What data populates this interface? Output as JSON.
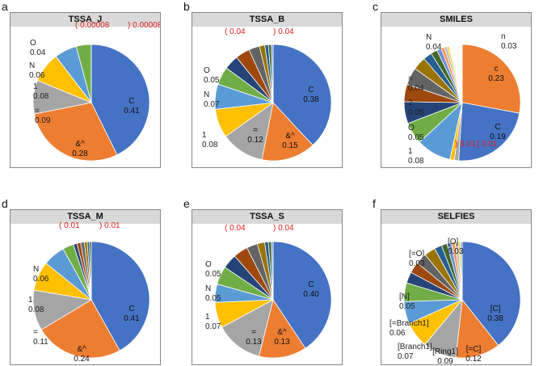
{
  "chart_data": [
    {
      "panel": "a",
      "title": "TSSA_J",
      "type": "pie",
      "slices": [
        {
          "label": "C",
          "value": 0.41,
          "color": "#4472c4",
          "text": "0.41"
        },
        {
          "label": "&^",
          "value": 0.28,
          "color": "#ed7d31",
          "text": "0.28"
        },
        {
          "label": "=",
          "value": 0.09,
          "color": "#a5a5a5",
          "text": "0.09"
        },
        {
          "label": "1",
          "value": 0.08,
          "color": "#ffc000",
          "text": "0.08"
        },
        {
          "label": "N",
          "value": 0.06,
          "color": "#5b9bd5",
          "text": "0.06"
        },
        {
          "label": "O",
          "value": 0.04,
          "color": "#70ad47",
          "text": "0.04"
        },
        {
          "label": "(",
          "value": 8e-05,
          "color": "#264478",
          "text": "0.00008"
        },
        {
          "label": ")",
          "value": 8e-05,
          "color": "#9e480e",
          "text": "0.00008"
        }
      ]
    },
    {
      "panel": "b",
      "title": "TSSA_B",
      "type": "pie",
      "slices": [
        {
          "label": "C",
          "value": 0.38,
          "color": "#4472c4",
          "text": "0.38"
        },
        {
          "label": "&^",
          "value": 0.15,
          "color": "#ed7d31",
          "text": "0.15"
        },
        {
          "label": "=",
          "value": 0.12,
          "color": "#a5a5a5",
          "text": "0.12"
        },
        {
          "label": "1",
          "value": 0.08,
          "color": "#ffc000",
          "text": "0.08"
        },
        {
          "label": "N",
          "value": 0.07,
          "color": "#5b9bd5",
          "text": "0.07"
        },
        {
          "label": "O",
          "value": 0.05,
          "color": "#70ad47",
          "text": "0.05"
        },
        {
          "label": "(",
          "value": 0.04,
          "color": "#264478",
          "text": "0.04"
        },
        {
          "label": ")",
          "value": 0.04,
          "color": "#9e480e",
          "text": "0.04"
        },
        {
          "label": "",
          "value": 0.03,
          "color": "#636363"
        },
        {
          "label": "",
          "value": 0.015,
          "color": "#997300"
        },
        {
          "label": "",
          "value": 0.01,
          "color": "#255e91"
        },
        {
          "label": "",
          "value": 0.008,
          "color": "#43682b"
        },
        {
          "label": "",
          "value": 0.005,
          "color": "#698ed0"
        }
      ]
    },
    {
      "panel": "c",
      "title": "SMILES",
      "type": "pie",
      "slices": [
        {
          "label": "c",
          "value": 0.23,
          "color": "#ed7d31",
          "text": "0.23"
        },
        {
          "label": "C",
          "value": 0.19,
          "color": "#4472c4",
          "text": "0.19"
        },
        {
          "label": "(",
          "value": 0.01,
          "color": "#a5a5a5",
          "text": "0.01"
        },
        {
          "label": ")",
          "value": 0.01,
          "color": "#ffc000",
          "text": "0.01"
        },
        {
          "label": "1",
          "value": 0.08,
          "color": "#5b9bd5",
          "text": "0.08"
        },
        {
          "label": "O",
          "value": 0.05,
          "color": "#70ad47",
          "text": "0.05"
        },
        {
          "label": "2",
          "value": 0.05,
          "color": "#264478",
          "text": "0.05"
        },
        {
          "label": "=",
          "value": 0.04,
          "color": "#9e480e",
          "text": "0.04"
        },
        {
          "label": "N",
          "value": 0.04,
          "color": "#636363",
          "text": "0.04"
        },
        {
          "label": "",
          "value": 0.03,
          "color": "#997300"
        },
        {
          "label": "",
          "value": 0.02,
          "color": "#255e91"
        },
        {
          "label": "",
          "value": 0.015,
          "color": "#43682b"
        },
        {
          "label": "",
          "value": 0.01,
          "color": "#698ed0"
        },
        {
          "label": "",
          "value": 0.008,
          "color": "#f1975a"
        },
        {
          "label": "",
          "value": 0.006,
          "color": "#b7b7b7"
        },
        {
          "label": "",
          "value": 0.005,
          "color": "#ffcd33"
        },
        {
          "label": "n",
          "value": 0.03,
          "color": "#ffffff",
          "text": "0.03"
        }
      ]
    },
    {
      "panel": "d",
      "title": "TSSA_M",
      "type": "pie",
      "slices": [
        {
          "label": "C",
          "value": 0.41,
          "color": "#4472c4",
          "text": "0.41"
        },
        {
          "label": "&^",
          "value": 0.24,
          "color": "#ed7d31",
          "text": "0.24"
        },
        {
          "label": "=",
          "value": 0.11,
          "color": "#a5a5a5",
          "text": "0.11"
        },
        {
          "label": "1",
          "value": 0.08,
          "color": "#ffc000",
          "text": "0.08"
        },
        {
          "label": "N",
          "value": 0.06,
          "color": "#5b9bd5",
          "text": "0.06"
        },
        {
          "label": "",
          "value": 0.03,
          "color": "#70ad47"
        },
        {
          "label": "(",
          "value": 0.01,
          "color": "#264478",
          "text": "0.01"
        },
        {
          "label": ")",
          "value": 0.01,
          "color": "#9e480e",
          "text": "0.01"
        },
        {
          "label": "",
          "value": 0.01,
          "color": "#636363"
        },
        {
          "label": "",
          "value": 0.008,
          "color": "#997300"
        },
        {
          "label": "",
          "value": 0.006,
          "color": "#255e91"
        },
        {
          "label": "",
          "value": 0.005,
          "color": "#43682b"
        }
      ]
    },
    {
      "panel": "e",
      "title": "TSSA_S",
      "type": "pie",
      "slices": [
        {
          "label": "C",
          "value": 0.4,
          "color": "#4472c4",
          "text": "0.40"
        },
        {
          "label": "&^",
          "value": 0.13,
          "color": "#ed7d31",
          "text": "0.13"
        },
        {
          "label": "=",
          "value": 0.13,
          "color": "#a5a5a5",
          "text": "0.13"
        },
        {
          "label": "1",
          "value": 0.07,
          "color": "#ffc000",
          "text": "0.07"
        },
        {
          "label": "N",
          "value": 0.05,
          "color": "#5b9bd5",
          "text": "0.05"
        },
        {
          "label": "O",
          "value": 0.05,
          "color": "#70ad47",
          "text": "0.05"
        },
        {
          "label": "(",
          "value": 0.04,
          "color": "#264478",
          "text": "0.04"
        },
        {
          "label": ")",
          "value": 0.04,
          "color": "#9e480e",
          "text": "0.04"
        },
        {
          "label": "",
          "value": 0.03,
          "color": "#636363"
        },
        {
          "label": "",
          "value": 0.02,
          "color": "#997300"
        },
        {
          "label": "",
          "value": 0.01,
          "color": "#255e91"
        },
        {
          "label": "",
          "value": 0.008,
          "color": "#43682b"
        },
        {
          "label": "",
          "value": 0.005,
          "color": "#698ed0"
        }
      ]
    },
    {
      "panel": "f",
      "title": "SELFIES",
      "type": "pie",
      "slices": [
        {
          "label": "[C]",
          "value": 0.38,
          "color": "#4472c4",
          "text": "0.38"
        },
        {
          "label": "[=C]",
          "value": 0.12,
          "color": "#ed7d31",
          "text": "0.12"
        },
        {
          "label": "[Ring1]",
          "value": 0.09,
          "color": "#a5a5a5",
          "text": "0.09"
        },
        {
          "label": "[Branch1]",
          "value": 0.07,
          "color": "#ffc000",
          "text": "0.07"
        },
        {
          "label": "[=Branch1]",
          "value": 0.06,
          "color": "#5b9bd5",
          "text": "0.06"
        },
        {
          "label": "[N]",
          "value": 0.05,
          "color": "#70ad47",
          "text": "0.05"
        },
        {
          "label": "",
          "value": 0.03,
          "color": "#264478"
        },
        {
          "label": "",
          "value": 0.03,
          "color": "#9e480e"
        },
        {
          "label": "[=O]",
          "value": 0.03,
          "color": "#636363",
          "text": "0.03"
        },
        {
          "label": "[O]",
          "value": 0.03,
          "color": "#997300",
          "text": "0.03"
        },
        {
          "label": "",
          "value": 0.02,
          "color": "#255e91"
        },
        {
          "label": "",
          "value": 0.015,
          "color": "#43682b"
        },
        {
          "label": "",
          "value": 0.012,
          "color": "#698ed0"
        },
        {
          "label": "",
          "value": 0.01,
          "color": "#f1975a"
        },
        {
          "label": "",
          "value": 0.008,
          "color": "#b7b7b7"
        },
        {
          "label": "",
          "value": 0.006,
          "color": "#ffcd33"
        },
        {
          "label": "",
          "value": 0.005,
          "color": "#7cafdd"
        }
      ]
    }
  ],
  "label_color": "#222222",
  "highlight_color": "#e02020"
}
